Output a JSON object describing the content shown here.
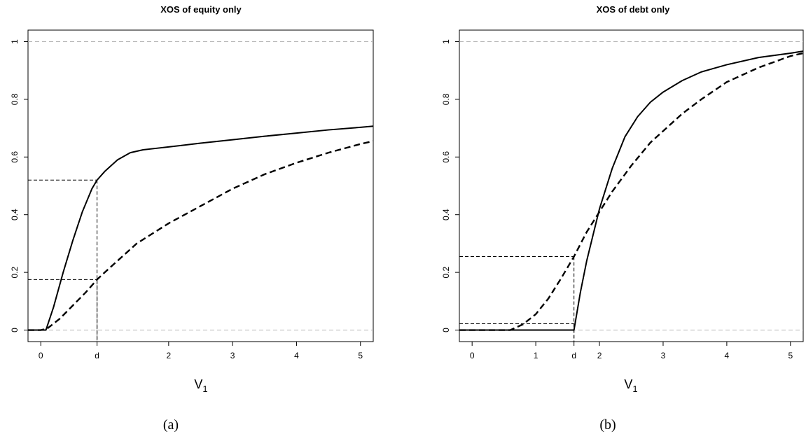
{
  "chart_data": [
    {
      "type": "line",
      "title": "XOS of equity only",
      "xlabel": "V",
      "xlabel_sub": "1",
      "ylabel": "",
      "xlim": [
        -0.2,
        5.2
      ],
      "ylim": [
        -0.04,
        1.04
      ],
      "x_ticks": [
        {
          "value": 0,
          "label": "0"
        },
        {
          "value": 0.88,
          "label": "d"
        },
        {
          "value": 2,
          "label": "2"
        },
        {
          "value": 3,
          "label": "3"
        },
        {
          "value": 4,
          "label": "4"
        },
        {
          "value": 5,
          "label": "5"
        }
      ],
      "y_ticks": [
        {
          "value": 0,
          "label": "0"
        },
        {
          "value": 0.2,
          "label": "0.2"
        },
        {
          "value": 0.4,
          "label": "0.4"
        },
        {
          "value": 0.6,
          "label": "0.6"
        },
        {
          "value": 0.8,
          "label": "0.8"
        },
        {
          "value": 1,
          "label": "1"
        }
      ],
      "reference_lines": [
        0,
        1
      ],
      "series": [
        {
          "style": "solid",
          "x": [
            -0.2,
            0.08,
            0.2,
            0.35,
            0.5,
            0.65,
            0.8,
            0.88,
            1.0,
            1.2,
            1.4,
            1.6,
            1.8,
            2.0,
            2.5,
            3.0,
            3.5,
            4.0,
            4.5,
            5.0,
            5.2
          ],
          "y": [
            0.0,
            0.0,
            0.08,
            0.2,
            0.31,
            0.41,
            0.49,
            0.52,
            0.55,
            0.59,
            0.615,
            0.625,
            0.63,
            0.635,
            0.648,
            0.66,
            0.672,
            0.683,
            0.694,
            0.703,
            0.707
          ]
        },
        {
          "style": "dashed",
          "x": [
            -0.2,
            0.0,
            0.1,
            0.3,
            0.5,
            0.7,
            0.88,
            1.0,
            1.2,
            1.5,
            2.0,
            2.5,
            3.0,
            3.5,
            4.0,
            4.5,
            5.0,
            5.2
          ],
          "y": [
            0.0,
            0.0,
            0.005,
            0.04,
            0.085,
            0.13,
            0.175,
            0.2,
            0.24,
            0.3,
            0.37,
            0.43,
            0.49,
            0.54,
            0.58,
            0.615,
            0.645,
            0.655
          ]
        }
      ],
      "guides": [
        {
          "x": 0.88,
          "y": 0.52
        },
        {
          "x": 0.88,
          "y": 0.175
        }
      ],
      "caption": "(a)"
    },
    {
      "type": "line",
      "title": "XOS of debt only",
      "xlabel": "V",
      "xlabel_sub": "1",
      "ylabel": "",
      "xlim": [
        -0.2,
        5.2
      ],
      "ylim": [
        -0.04,
        1.04
      ],
      "x_ticks": [
        {
          "value": 0,
          "label": "0"
        },
        {
          "value": 1,
          "label": "1"
        },
        {
          "value": 1.6,
          "label": "d"
        },
        {
          "value": 2,
          "label": "2"
        },
        {
          "value": 3,
          "label": "3"
        },
        {
          "value": 4,
          "label": "4"
        },
        {
          "value": 5,
          "label": "5"
        }
      ],
      "y_ticks": [
        {
          "value": 0,
          "label": "0"
        },
        {
          "value": 0.2,
          "label": "0.2"
        },
        {
          "value": 0.4,
          "label": "0.4"
        },
        {
          "value": 0.6,
          "label": "0.6"
        },
        {
          "value": 0.8,
          "label": "0.8"
        },
        {
          "value": 1,
          "label": "1"
        }
      ],
      "reference_lines": [
        0,
        1
      ],
      "series": [
        {
          "style": "solid",
          "x": [
            -0.2,
            1.6,
            1.7,
            1.8,
            1.9,
            2.0,
            2.2,
            2.4,
            2.6,
            2.8,
            3.0,
            3.3,
            3.6,
            4.0,
            4.5,
            5.0,
            5.2
          ],
          "y": [
            0.0,
            0.0,
            0.13,
            0.24,
            0.33,
            0.42,
            0.56,
            0.67,
            0.74,
            0.79,
            0.825,
            0.865,
            0.895,
            0.92,
            0.945,
            0.96,
            0.967
          ]
        },
        {
          "style": "dashed",
          "x": [
            -0.2,
            0.6,
            0.8,
            1.0,
            1.2,
            1.4,
            1.6,
            1.8,
            2.0,
            2.2,
            2.5,
            2.8,
            3.0,
            3.3,
            3.6,
            4.0,
            4.5,
            5.0,
            5.2
          ],
          "y": [
            0.0,
            0.0,
            0.02,
            0.055,
            0.11,
            0.18,
            0.255,
            0.34,
            0.41,
            0.48,
            0.57,
            0.65,
            0.69,
            0.75,
            0.8,
            0.86,
            0.91,
            0.95,
            0.96
          ]
        }
      ],
      "guides": [
        {
          "x": 1.6,
          "y": 0.255
        },
        {
          "x": 1.6,
          "y": 0.022
        }
      ],
      "caption": "(b)"
    }
  ]
}
